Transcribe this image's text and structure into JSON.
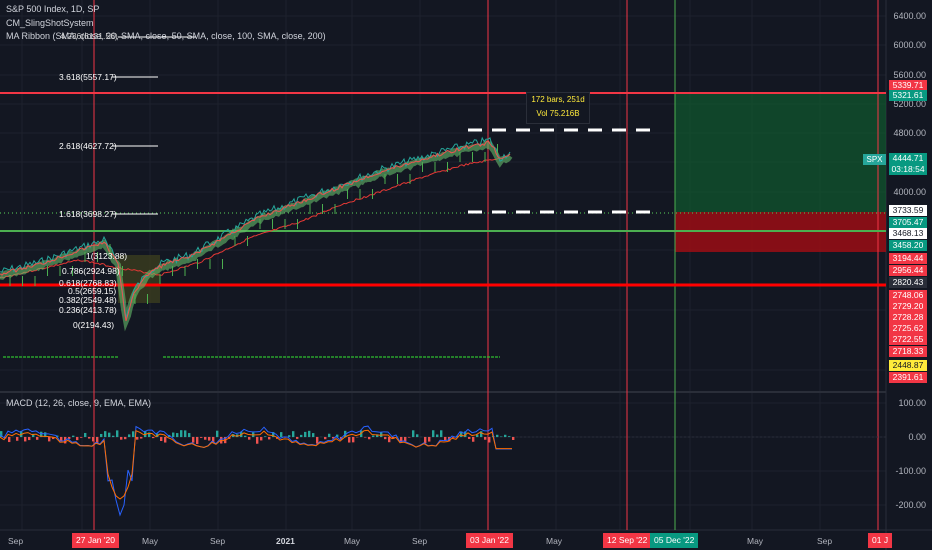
{
  "header": {
    "symbol": "S&P 500 Index, 1D, SP",
    "indicator1": "CM_SlingShotSystem",
    "indicator2": "MA Ribbon (SMA, close, 20, SMA, close, 50, SMA, close, 100, SMA, close, 200)",
    "macd": "MACD (12, 26, close, 9, EMA, EMA)"
  },
  "price_axis": {
    "labels": [
      "6400.00",
      "6000.00",
      "5600.00",
      "5200.00",
      "4800.00",
      "4000.00"
    ],
    "macd_labels": [
      "100.00",
      "0.00",
      "-100.00",
      "-200.00"
    ]
  },
  "price_tags": [
    {
      "text": "5339.71",
      "color": "#f23645"
    },
    {
      "text": "5321.61",
      "color": "#089981"
    },
    {
      "text": "4444.71",
      "color": "#089981"
    },
    {
      "text": "03:18:54",
      "color": "#089981"
    },
    {
      "text": "3733.59",
      "color": "#ffffff",
      "fg": "#131722"
    },
    {
      "text": "3705.47",
      "color": "#089981"
    },
    {
      "text": "3468.13",
      "color": "#ffffff",
      "fg": "#131722"
    },
    {
      "text": "3458.20",
      "color": "#089981"
    },
    {
      "text": "3194.44",
      "color": "#f23645"
    },
    {
      "text": "2956.44",
      "color": "#f23645"
    },
    {
      "text": "2820.43",
      "color": "#2a2e39"
    },
    {
      "text": "2748.06",
      "color": "#f23645"
    },
    {
      "text": "2729.20",
      "color": "#f23645"
    },
    {
      "text": "2728.28",
      "color": "#f23645"
    },
    {
      "text": "2725.62",
      "color": "#f23645"
    },
    {
      "text": "2722.55",
      "color": "#f23645"
    },
    {
      "text": "2718.33",
      "color": "#f23645"
    },
    {
      "text": "2448.87",
      "color": "#ffeb3b",
      "fg": "#131722"
    },
    {
      "text": "2391.61",
      "color": "#f23645"
    }
  ],
  "spx_badge": "SPX",
  "fib_levels": [
    {
      "text": "4.236(6131.56)"
    },
    {
      "text": "3.618(5557.17)"
    },
    {
      "text": "2.618(4627.72)"
    },
    {
      "text": "1.618(3698.27)"
    },
    {
      "text": "1(3123.88)"
    },
    {
      "text": "0.786(2924.98)"
    },
    {
      "text": "0.618(2768.83)"
    },
    {
      "text": "0.5(2659.15)"
    },
    {
      "text": "0.382(2549.48)"
    },
    {
      "text": "0.236(2413.78)"
    },
    {
      "text": "0(2194.43)"
    }
  ],
  "tooltip": {
    "bars": "172 bars, 251d",
    "vol": "Vol 75.216B"
  },
  "time_axis": {
    "labels": [
      "Sep",
      "May",
      "Sep",
      "2021",
      "May",
      "Sep",
      "May",
      "May",
      "Sep"
    ],
    "tags": [
      {
        "text": "27 Jan '20",
        "color": "#f23645"
      },
      {
        "text": "03 Jan '22",
        "color": "#f23645"
      },
      {
        "text": "12 Sep '22",
        "color": "#f23645"
      },
      {
        "text": "05 Dec '22",
        "color": "#089981"
      },
      {
        "text": "01 J",
        "color": "#f23645"
      }
    ]
  }
}
